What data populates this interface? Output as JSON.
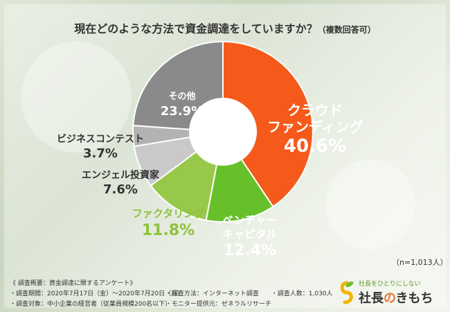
{
  "title": {
    "main": "現在どのような方法で資金調達をしていますか？",
    "sub": "（複数回答可）"
  },
  "chart_data": {
    "type": "pie",
    "categories": [
      "クラウドファンディング",
      "ベンチャーキャピタル",
      "ファクタリング",
      "エンジェル投資家",
      "ビジネスコンテスト",
      "その他"
    ],
    "values": [
      40.6,
      12.4,
      11.8,
      7.6,
      3.7,
      23.9
    ],
    "display_values": [
      "40.6%",
      "12.4%",
      "11.8%",
      "7.6%",
      "3.7%",
      "23.9%"
    ],
    "colors": [
      "#f55a1a",
      "#67c02a",
      "#98c84a",
      "#c9c9c9",
      "#b3b3b3",
      "#8a8a8a"
    ],
    "label_colors": [
      "#ffffff",
      "#ffffff",
      "#8dc33a",
      "#333333",
      "#333333",
      "#ffffff"
    ],
    "donut": true
  },
  "labels": {
    "crowdfunding_line1": "クラウド",
    "crowdfunding_line2": "ファンディング",
    "venture_line1": "ベンチャー",
    "venture_line2": "キャピタル",
    "factoring": "ファクタリング",
    "angel": "エンジェル投資家",
    "contest": "ビジネスコンテスト",
    "other": "その他"
  },
  "note": "（n=1,013人）",
  "footer": {
    "heading": "《 調査概要：資金調達に関するアンケート》",
    "period": "・調査期間：2020年7月17日（金）～2020年7月20日（月）",
    "method": "・調査方法：インターネット調査",
    "count": "・調査人数：1,030人",
    "target": "・調査対象：中小企業の経営者（従業員規模200名以下）",
    "provider": "・モニター提供元：ゼネラルリサーチ"
  },
  "logo": {
    "tagline": "社長をひとりにしない",
    "name_a": "社長",
    "name_b": "の",
    "name_c": "きもち"
  }
}
